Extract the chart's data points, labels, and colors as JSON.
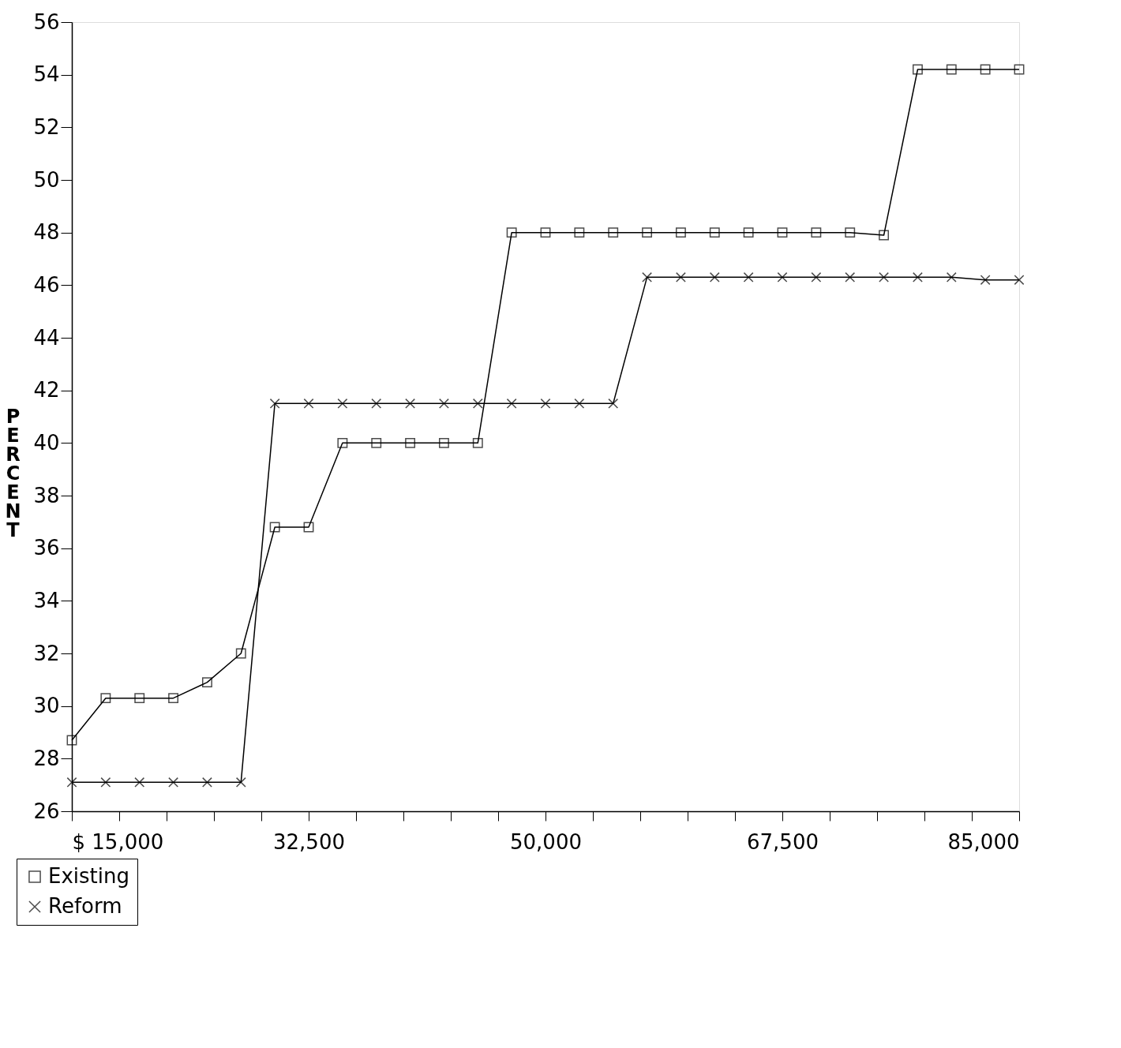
{
  "chart_data": {
    "type": "line",
    "ylabel": "PERCENT",
    "x": [
      15000,
      17500,
      20000,
      22500,
      25000,
      27500,
      30000,
      32500,
      35000,
      37500,
      40000,
      42500,
      45000,
      47500,
      50000,
      52500,
      55000,
      57500,
      60000,
      62500,
      65000,
      67500,
      70000,
      72500,
      75000,
      77500,
      80000,
      82500,
      85000
    ],
    "series": [
      {
        "name": "Existing",
        "color": "#000000",
        "marker": "square",
        "values": [
          28.7,
          30.3,
          30.3,
          30.3,
          30.9,
          32,
          36.8,
          36.8,
          40,
          40,
          40,
          40,
          40,
          48,
          48,
          48,
          48,
          48,
          48,
          48,
          48,
          48,
          48,
          48,
          47.9,
          54.2,
          54.2,
          54.2,
          54.2
        ]
      },
      {
        "name": "Reform",
        "color": "#000000",
        "marker": "cross",
        "values": [
          27.1,
          27.1,
          27.1,
          27.1,
          27.1,
          27.1,
          41.5,
          41.5,
          41.5,
          41.5,
          41.5,
          41.5,
          41.5,
          41.5,
          41.5,
          41.5,
          41.5,
          46.3,
          46.3,
          46.3,
          46.3,
          46.3,
          46.3,
          46.3,
          46.3,
          46.3,
          46.3,
          46.2,
          46.2
        ]
      }
    ],
    "xlim": [
      15000,
      85000
    ],
    "xticks": [
      {
        "value": 15000,
        "label": "$ 15,000"
      },
      {
        "value": 18500,
        "label": null
      },
      {
        "value": 22000,
        "label": null
      },
      {
        "value": 25500,
        "label": null
      },
      {
        "value": 29000,
        "label": null
      },
      {
        "value": 32500,
        "label": "32,500"
      },
      {
        "value": 36000,
        "label": null
      },
      {
        "value": 39500,
        "label": null
      },
      {
        "value": 43000,
        "label": null
      },
      {
        "value": 46500,
        "label": null
      },
      {
        "value": 50000,
        "label": "50,000"
      },
      {
        "value": 53500,
        "label": null
      },
      {
        "value": 57000,
        "label": null
      },
      {
        "value": 60500,
        "label": null
      },
      {
        "value": 64000,
        "label": null
      },
      {
        "value": 67500,
        "label": "67,500"
      },
      {
        "value": 71000,
        "label": null
      },
      {
        "value": 74500,
        "label": null
      },
      {
        "value": 78000,
        "label": null
      },
      {
        "value": 81500,
        "label": null
      },
      {
        "value": 85000,
        "label": "85,000"
      }
    ],
    "ylim": [
      26,
      56
    ],
    "yticks": [
      26,
      28,
      30,
      32,
      34,
      36,
      38,
      40,
      42,
      44,
      46,
      48,
      50,
      52,
      54,
      56
    ],
    "grid": false,
    "legend": "bottom left",
    "line_style": "solid"
  }
}
